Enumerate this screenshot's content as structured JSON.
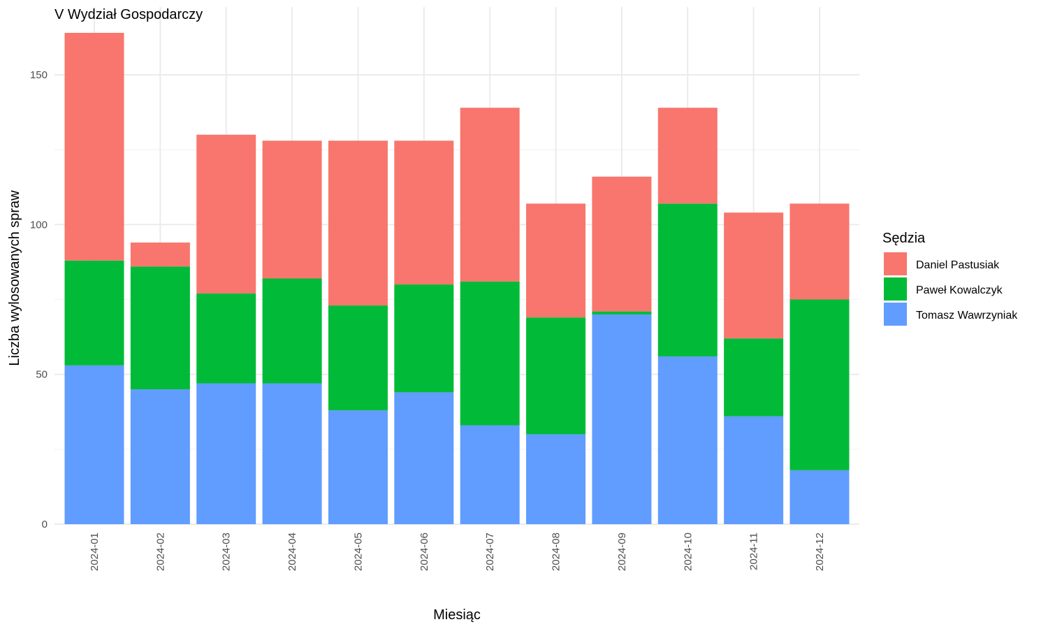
{
  "chart_data": {
    "type": "bar",
    "stacked": true,
    "title": "V Wydział Gospodarczy",
    "xlabel": "Miesiąc",
    "ylabel": "Liczba wylosowanych spraw",
    "categories": [
      "2024-01",
      "2024-02",
      "2024-03",
      "2024-04",
      "2024-05",
      "2024-06",
      "2024-07",
      "2024-08",
      "2024-09",
      "2024-10",
      "2024-11",
      "2024-12"
    ],
    "ylim": [
      0,
      172
    ],
    "yticks": [
      0,
      50,
      100,
      150
    ],
    "grid": true,
    "legend_title": "Sędzia",
    "legend_position": "right",
    "series": [
      {
        "name": "Tomasz Wawrzyniak",
        "color": "#619CFF",
        "values": [
          53,
          45,
          47,
          47,
          38,
          44,
          33,
          30,
          70,
          56,
          36,
          18
        ]
      },
      {
        "name": "Paweł Kowalczyk",
        "color": "#00BA38",
        "values": [
          35,
          41,
          30,
          35,
          35,
          36,
          48,
          39,
          1,
          51,
          26,
          57
        ]
      },
      {
        "name": "Daniel Pastusiak",
        "color": "#F8766D",
        "values": [
          76,
          8,
          53,
          46,
          55,
          48,
          58,
          38,
          45,
          32,
          42,
          32
        ]
      }
    ],
    "legend_order": [
      "Daniel Pastusiak",
      "Paweł Kowalczyk",
      "Tomasz Wawrzyniak"
    ]
  }
}
